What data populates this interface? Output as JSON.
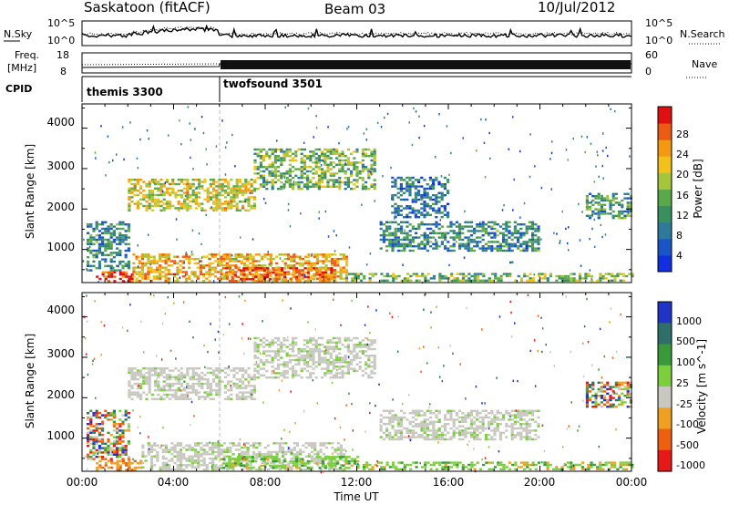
{
  "header": {
    "station": "Saskatoon (fitACF)",
    "beam": "Beam 03",
    "date": "10/Jul/2012"
  },
  "colors": {
    "background": "#ffffff",
    "axis": "#000000",
    "ground_scatter": "#c8c8c0"
  },
  "nsky_panel": {
    "left_label": "N.Sky",
    "left_ticks": [
      "10^5",
      "10^0"
    ],
    "right_label": "N.Search",
    "right_ticks": [
      "10^5",
      "10^0"
    ]
  },
  "freq_panel": {
    "left_label_line1": "Freq.",
    "left_label_line2": "[MHz]",
    "left_ticks": [
      "18",
      "8"
    ],
    "right_label": "Nave",
    "right_ticks": [
      "60",
      "0"
    ]
  },
  "cpid_panel": {
    "label": "CPID",
    "modes": [
      {
        "name": "themis 3300",
        "start_hour": 0
      },
      {
        "name": "twofsound 3501",
        "start_hour": 6
      }
    ]
  },
  "chart_data": [
    {
      "type": "heatmap",
      "name": "power",
      "ylabel": "Slant Range [km]",
      "yticks": [
        "4000",
        "3000",
        "2000",
        "1000"
      ],
      "ylim": [
        180,
        4600
      ],
      "xlim": [
        0,
        24
      ],
      "colorbar": {
        "label": "Power [dB]",
        "range": [
          0,
          32
        ],
        "tick_labels": [
          "28",
          "24",
          "20",
          "16",
          "12",
          "8",
          "4"
        ],
        "colors": [
          "#1030e0",
          "#1a55c8",
          "#2f7a9a",
          "#3a8f5e",
          "#5aa848",
          "#a6c43c",
          "#f2c21a",
          "#f39a12",
          "#ec5a14",
          "#e01010"
        ]
      },
      "echo_regions": [
        {
          "t0": 0.6,
          "t1": 2.2,
          "r0": 230,
          "r1": 460,
          "intensity": 0.96
        },
        {
          "t0": 2.2,
          "t1": 11.5,
          "r0": 230,
          "r1": 900,
          "intensity": 0.72
        },
        {
          "t0": 6.0,
          "t1": 11.0,
          "r0": 240,
          "r1": 560,
          "intensity": 0.9
        },
        {
          "t0": 11.5,
          "t1": 24.0,
          "r0": 230,
          "r1": 420,
          "intensity": 0.45
        },
        {
          "t0": 2.0,
          "t1": 7.5,
          "r0": 1950,
          "r1": 2750,
          "intensity": 0.62
        },
        {
          "t0": 7.5,
          "t1": 12.8,
          "r0": 2500,
          "r1": 3500,
          "intensity": 0.45
        },
        {
          "t0": 13.5,
          "t1": 16.0,
          "r0": 1800,
          "r1": 2800,
          "intensity": 0.22
        },
        {
          "t0": 13.0,
          "t1": 20.0,
          "r0": 950,
          "r1": 1700,
          "intensity": 0.28
        },
        {
          "t0": 22.0,
          "t1": 24.0,
          "r0": 1800,
          "r1": 2400,
          "intensity": 0.35
        },
        {
          "t0": 0.2,
          "t1": 2.0,
          "r0": 500,
          "r1": 1700,
          "intensity": 0.3
        }
      ]
    },
    {
      "type": "heatmap",
      "name": "velocity",
      "ylabel": "Slant Range [km]",
      "xlabel": "Time UT",
      "yticks": [
        "4000",
        "3000",
        "2000",
        "1000"
      ],
      "ylim": [
        180,
        4600
      ],
      "xlim": [
        0,
        24
      ],
      "xticks": [
        "00:00",
        "04:00",
        "08:00",
        "12:00",
        "16:00",
        "20:00",
        "00:00"
      ],
      "colorbar": {
        "label": "Velocity [m s^-1]",
        "tick_labels": [
          "1000",
          "500",
          "100",
          "25",
          "-25",
          "-100",
          "-500",
          "-1000"
        ],
        "colors": [
          "#2034c8",
          "#2f6f6a",
          "#3a9a3a",
          "#7ccf3c",
          "#c8c8c0",
          "#f0a020",
          "#ee6010",
          "#e81818"
        ]
      },
      "echo_regions": [
        {
          "t0": 0.6,
          "t1": 2.6,
          "r0": 230,
          "r1": 460,
          "kind": "neg"
        },
        {
          "t0": 2.6,
          "t1": 11.5,
          "r0": 230,
          "r1": 900,
          "kind": "ground"
        },
        {
          "t0": 6.0,
          "t1": 12.0,
          "r0": 240,
          "r1": 560,
          "kind": "pos"
        },
        {
          "t0": 12.0,
          "t1": 24.0,
          "r0": 230,
          "r1": 420,
          "kind": "pos"
        },
        {
          "t0": 2.0,
          "t1": 7.5,
          "r0": 1950,
          "r1": 2750,
          "kind": "ground"
        },
        {
          "t0": 7.5,
          "t1": 12.8,
          "r0": 2500,
          "r1": 3500,
          "kind": "ground"
        },
        {
          "t0": 13.0,
          "t1": 20.0,
          "r0": 950,
          "r1": 1700,
          "kind": "ground"
        },
        {
          "t0": 22.0,
          "t1": 24.0,
          "r0": 1800,
          "r1": 2400,
          "kind": "mixed"
        },
        {
          "t0": 0.2,
          "t1": 2.0,
          "r0": 500,
          "r1": 1700,
          "kind": "mixed"
        }
      ]
    }
  ]
}
